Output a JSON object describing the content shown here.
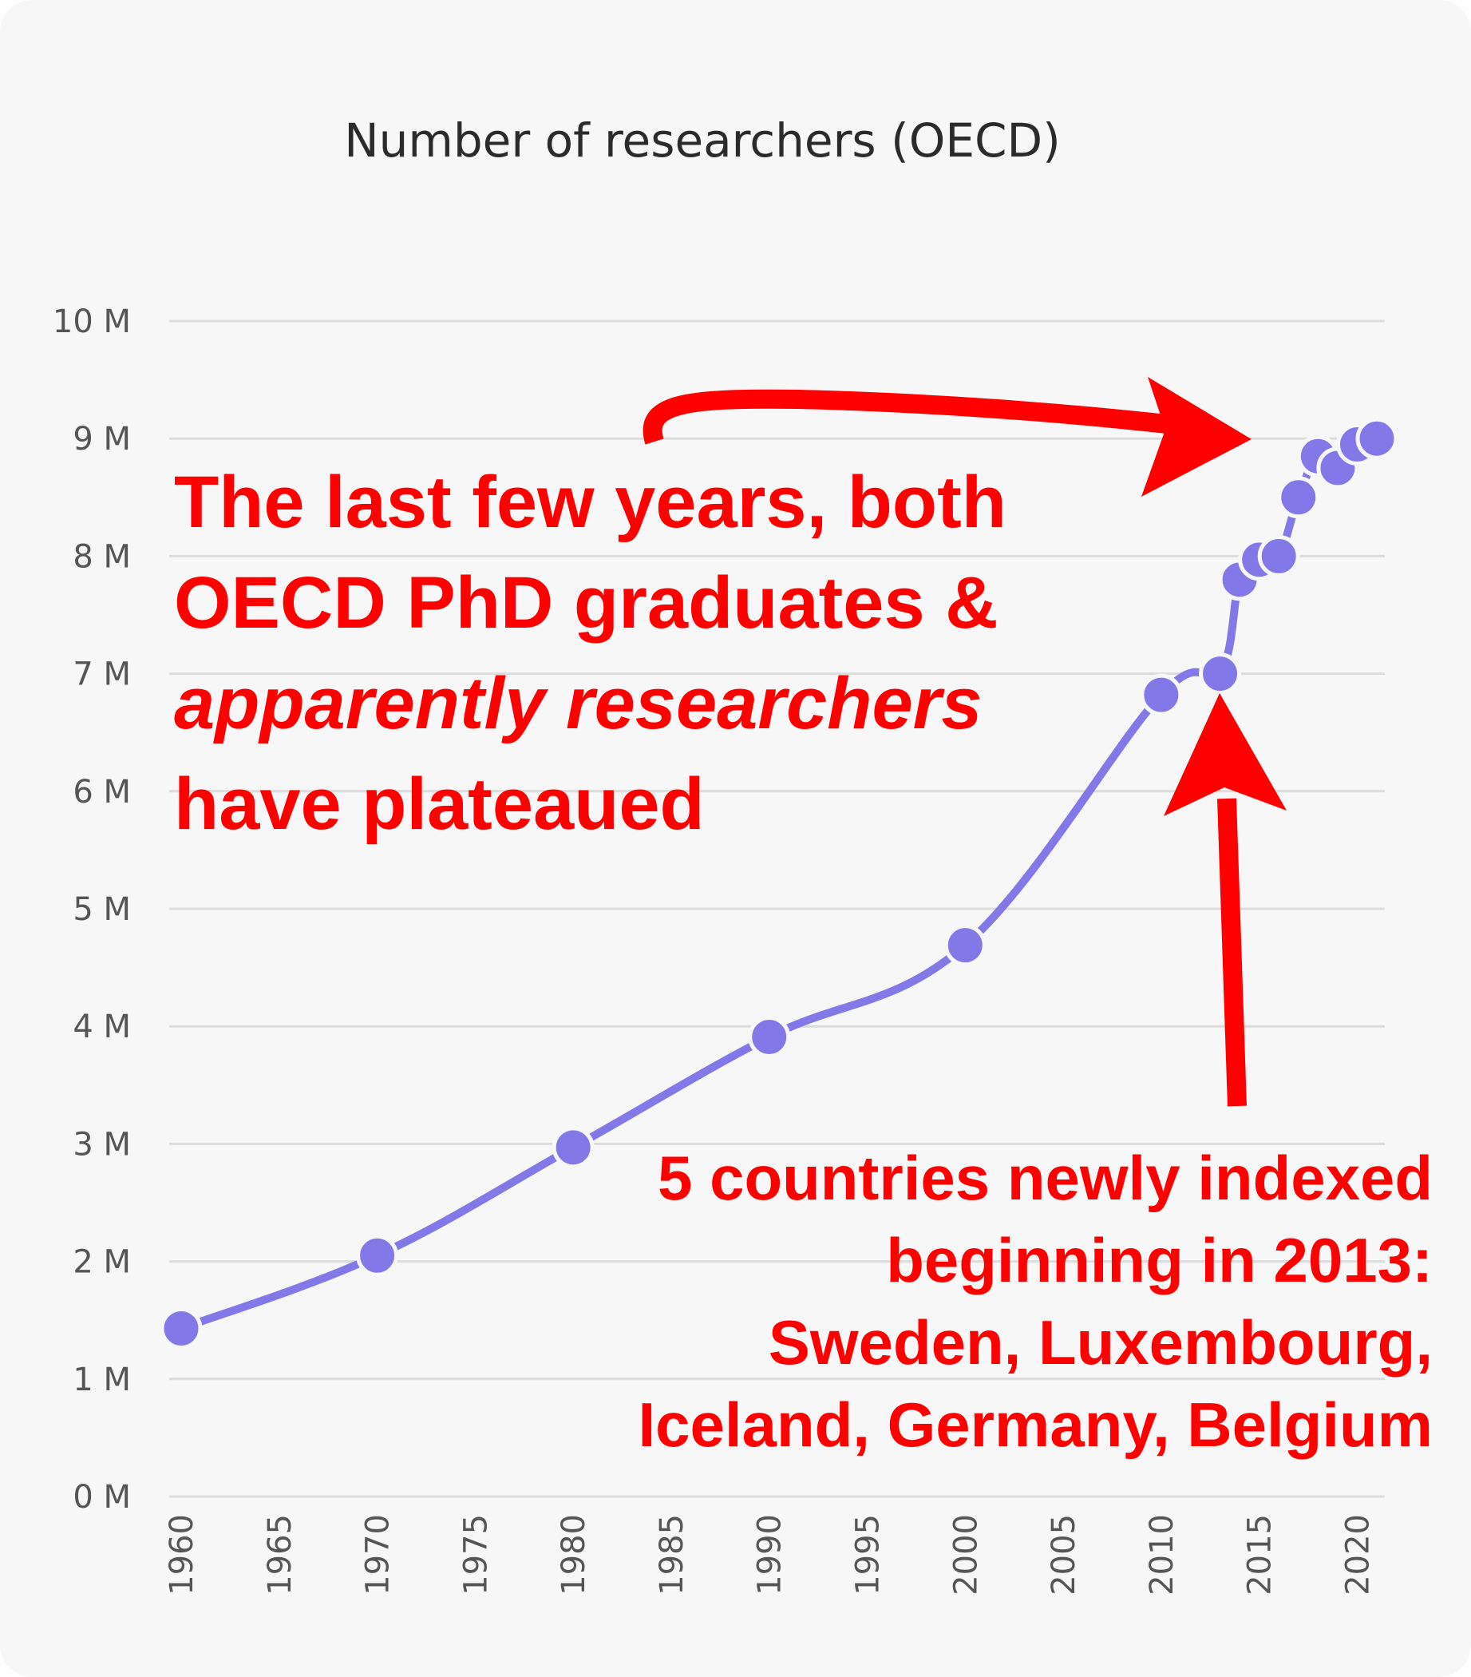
{
  "chart_data": {
    "type": "line",
    "title": "Number of researchers (OECD)",
    "xlabel": "",
    "ylabel": "",
    "ylim": [
      0,
      10
    ],
    "xlim": [
      1960,
      2021
    ],
    "y_unit": "M",
    "y_ticks": [
      "0 M",
      "1 M",
      "2 M",
      "3 M",
      "4 M",
      "5 M",
      "6 M",
      "7 M",
      "8 M",
      "9 M",
      "10 M"
    ],
    "x_ticks": [
      "1960",
      "1965",
      "1970",
      "1975",
      "1980",
      "1985",
      "1990",
      "1995",
      "2000",
      "2005",
      "2010",
      "2015",
      "2020"
    ],
    "grid": true,
    "series": [
      {
        "color": "#8378e8",
        "points": [
          {
            "x": 1960,
            "y": 1.43
          },
          {
            "x": 1970,
            "y": 2.05
          },
          {
            "x": 1980,
            "y": 2.97
          },
          {
            "x": 1990,
            "y": 3.91
          },
          {
            "x": 2000,
            "y": 4.69
          },
          {
            "x": 2010,
            "y": 6.82
          },
          {
            "x": 2013,
            "y": 7.0
          },
          {
            "x": 2014,
            "y": 7.8
          },
          {
            "x": 2015,
            "y": 7.97
          },
          {
            "x": 2016,
            "y": 8.0
          },
          {
            "x": 2017,
            "y": 8.5
          },
          {
            "x": 2018,
            "y": 8.85
          },
          {
            "x": 2019,
            "y": 8.75
          },
          {
            "x": 2020,
            "y": 8.95
          },
          {
            "x": 2021,
            "y": 9.0
          }
        ]
      }
    ]
  },
  "annotations": {
    "main": {
      "line1": "The last few years, both",
      "line2": "OECD PhD graduates &",
      "line3": "apparently researchers",
      "line4": "have plateaued"
    },
    "side": {
      "line1": "5 countries newly indexed",
      "line2": "beginning in 2013:",
      "line3": "Sweden, Luxembourg,",
      "line4": "Iceland, Germany, Belgium"
    },
    "color": "#ff0000"
  }
}
